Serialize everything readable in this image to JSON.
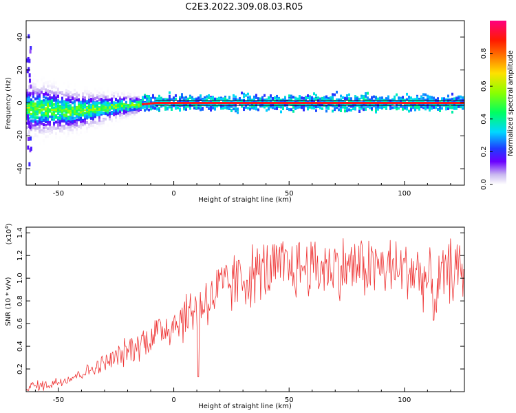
{
  "figure": {
    "title": "C2E3.2022.309.08.03.R05"
  },
  "chart_data": [
    {
      "type": "heatmap",
      "title": "C2E3.2022.309.08.03.R05",
      "xlabel": "Height of straight line (km)",
      "ylabel": "Frequency (Hz)",
      "xlim": [
        -64,
        126
      ],
      "ylim": [
        -50,
        50
      ],
      "x_ticks": [
        -50,
        0,
        50,
        100
      ],
      "y_ticks": [
        -40,
        -20,
        0,
        20,
        40
      ],
      "colorbar": {
        "label": "Normalized spectral amplitude",
        "range": [
          0.0,
          1.0
        ],
        "ticks": [
          0.0,
          0.2,
          0.4,
          0.6,
          0.8
        ]
      },
      "ridge": {
        "x": [
          -64,
          -55,
          -45,
          -35,
          -25,
          -15,
          -8,
          0,
          126
        ],
        "y": [
          -4,
          -4,
          -5,
          -4,
          -2,
          -1,
          0,
          0,
          0
        ]
      }
    },
    {
      "type": "line",
      "xlabel": "Height of straight line (km)",
      "ylabel": "SNR (10 * v/v)",
      "y_multiplier": "(x10^4)",
      "xlim": [
        -64,
        126
      ],
      "ylim": [
        0,
        1.45
      ],
      "x_ticks": [
        -50,
        0,
        50,
        100
      ],
      "y_ticks": [
        0.2,
        0.4,
        0.6,
        0.8,
        1.0,
        1.2,
        1.4
      ],
      "series_color": "#ee3333",
      "trend": {
        "x": [
          -64,
          -55,
          -45,
          -35,
          -25,
          -15,
          -5,
          5,
          15,
          25,
          35,
          45,
          55,
          65,
          75,
          85,
          95,
          105,
          111,
          113,
          120,
          126
        ],
        "y": [
          0.04,
          0.06,
          0.12,
          0.2,
          0.3,
          0.42,
          0.55,
          0.66,
          0.82,
          0.95,
          1.04,
          1.08,
          1.1,
          1.1,
          1.1,
          1.1,
          1.08,
          1.07,
          0.95,
          0.9,
          1.08,
          1.05
        ]
      },
      "dips": [
        {
          "x": 10.5,
          "y": 0.13
        },
        {
          "x": 112.5,
          "y": 0.63
        }
      ]
    }
  ]
}
